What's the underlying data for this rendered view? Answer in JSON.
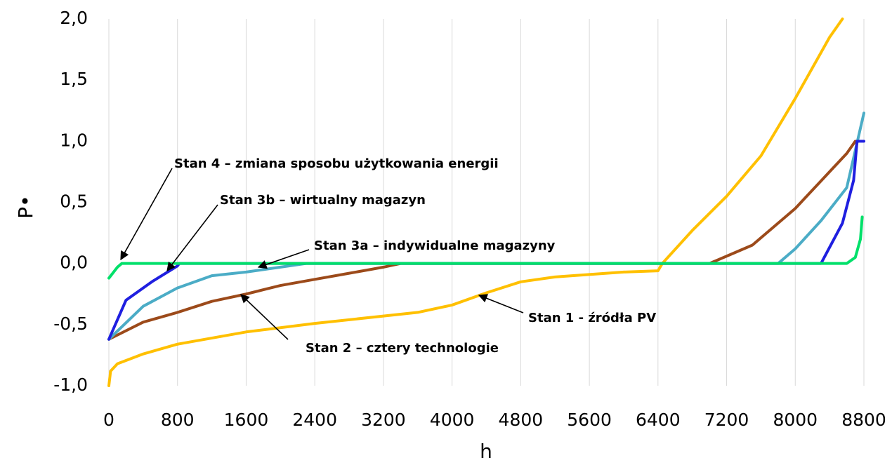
{
  "chart_data": {
    "type": "line",
    "xlabel": "h",
    "ylabel": "P•",
    "xlim": [
      0,
      8800
    ],
    "ylim": [
      -1.0,
      2.0
    ],
    "xticks": [
      0,
      800,
      1600,
      2400,
      3200,
      4000,
      4800,
      5600,
      6400,
      7200,
      8000,
      8800
    ],
    "yticks": [
      {
        "value": -1.0,
        "label": "-1,0"
      },
      {
        "value": -0.5,
        "label": "-0,5"
      },
      {
        "value": 0.0,
        "label": "0,0"
      },
      {
        "value": 0.5,
        "label": "0,5"
      },
      {
        "value": 1.0,
        "label": "1,0"
      },
      {
        "value": 1.5,
        "label": "1,5"
      },
      {
        "value": 2.0,
        "label": "2,0"
      }
    ],
    "grid": "x",
    "series": [
      {
        "name": "Stan 1 - źródła PV",
        "color": "#ffc000",
        "x": [
          0,
          20,
          100,
          400,
          800,
          1600,
          2400,
          3200,
          3600,
          4000,
          4400,
          4800,
          5200,
          5600,
          6000,
          6400,
          6450,
          6800,
          7200,
          7600,
          8000,
          8400,
          8550
        ],
        "values": [
          -1.0,
          -0.88,
          -0.82,
          -0.74,
          -0.66,
          -0.56,
          -0.49,
          -0.43,
          -0.4,
          -0.34,
          -0.24,
          -0.15,
          -0.11,
          -0.09,
          -0.07,
          -0.06,
          0.0,
          0.27,
          0.55,
          0.88,
          1.35,
          1.85,
          2.0
        ]
      },
      {
        "name": "Stan 2 – cztery technologie",
        "color": "#9c4a1a",
        "x": [
          0,
          400,
          800,
          1200,
          1600,
          2000,
          2400,
          2800,
          3200,
          3400,
          7000,
          7500,
          8000,
          8400,
          8600,
          8700
        ],
        "values": [
          -0.62,
          -0.48,
          -0.4,
          -0.31,
          -0.25,
          -0.18,
          -0.13,
          -0.08,
          -0.03,
          0.0,
          0.0,
          0.15,
          0.45,
          0.75,
          0.9,
          1.0
        ]
      },
      {
        "name": "Stan 3a – indywidualne magazyny",
        "color": "#4bacc6",
        "x": [
          0,
          400,
          800,
          1200,
          1600,
          2000,
          2300,
          7800,
          8000,
          8300,
          8600,
          8800
        ],
        "values": [
          -0.62,
          -0.35,
          -0.2,
          -0.1,
          -0.07,
          -0.03,
          0.0,
          0.0,
          0.12,
          0.35,
          0.62,
          1.23
        ]
      },
      {
        "name": "Stan 3b – wirtualny magazyn",
        "color": "#1f1fe0",
        "x": [
          0,
          200,
          500,
          800,
          820,
          8300,
          8550,
          8680,
          8720,
          8800
        ],
        "values": [
          -0.62,
          -0.3,
          -0.15,
          -0.02,
          0.0,
          0.0,
          0.33,
          0.68,
          1.0,
          1.0
        ]
      },
      {
        "name": "Stan 4 – zmiana sposobu użytkowania energii",
        "color": "#00e06a",
        "x": [
          0,
          100,
          150,
          8600,
          8700,
          8760,
          8780
        ],
        "values": [
          -0.12,
          -0.03,
          0.0,
          0.0,
          0.05,
          0.2,
          0.38
        ]
      }
    ]
  }
}
